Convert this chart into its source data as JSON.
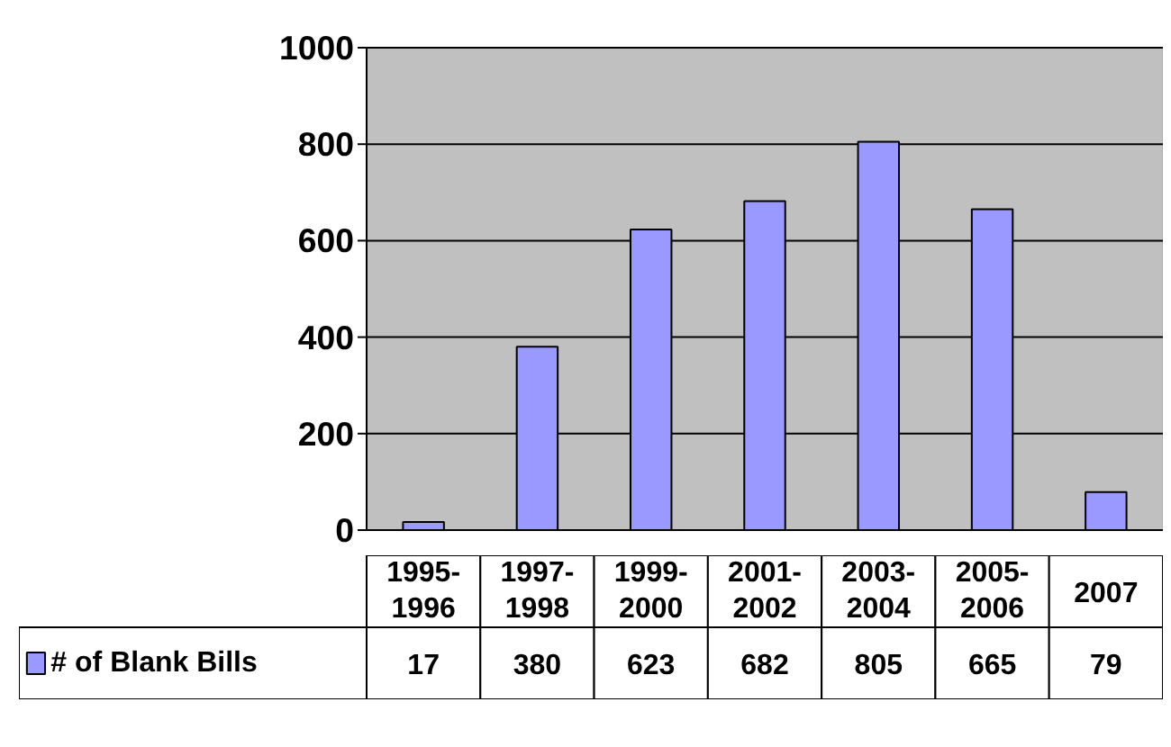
{
  "chart_data": {
    "type": "bar",
    "categories": [
      "1995-1996",
      "1997-1998",
      "1999-2000",
      "2001-2002",
      "2003-2004",
      "2005-2006",
      "2007"
    ],
    "series": [
      {
        "name": "# of Blank Bills",
        "color": "#9999ff",
        "values": [
          17,
          380,
          623,
          682,
          805,
          665,
          79
        ]
      }
    ],
    "ylim": [
      0,
      1000
    ],
    "yticks": [
      0,
      200,
      400,
      600,
      800,
      1000
    ],
    "grid": "y",
    "legend": "bottom",
    "data_labels": true
  }
}
